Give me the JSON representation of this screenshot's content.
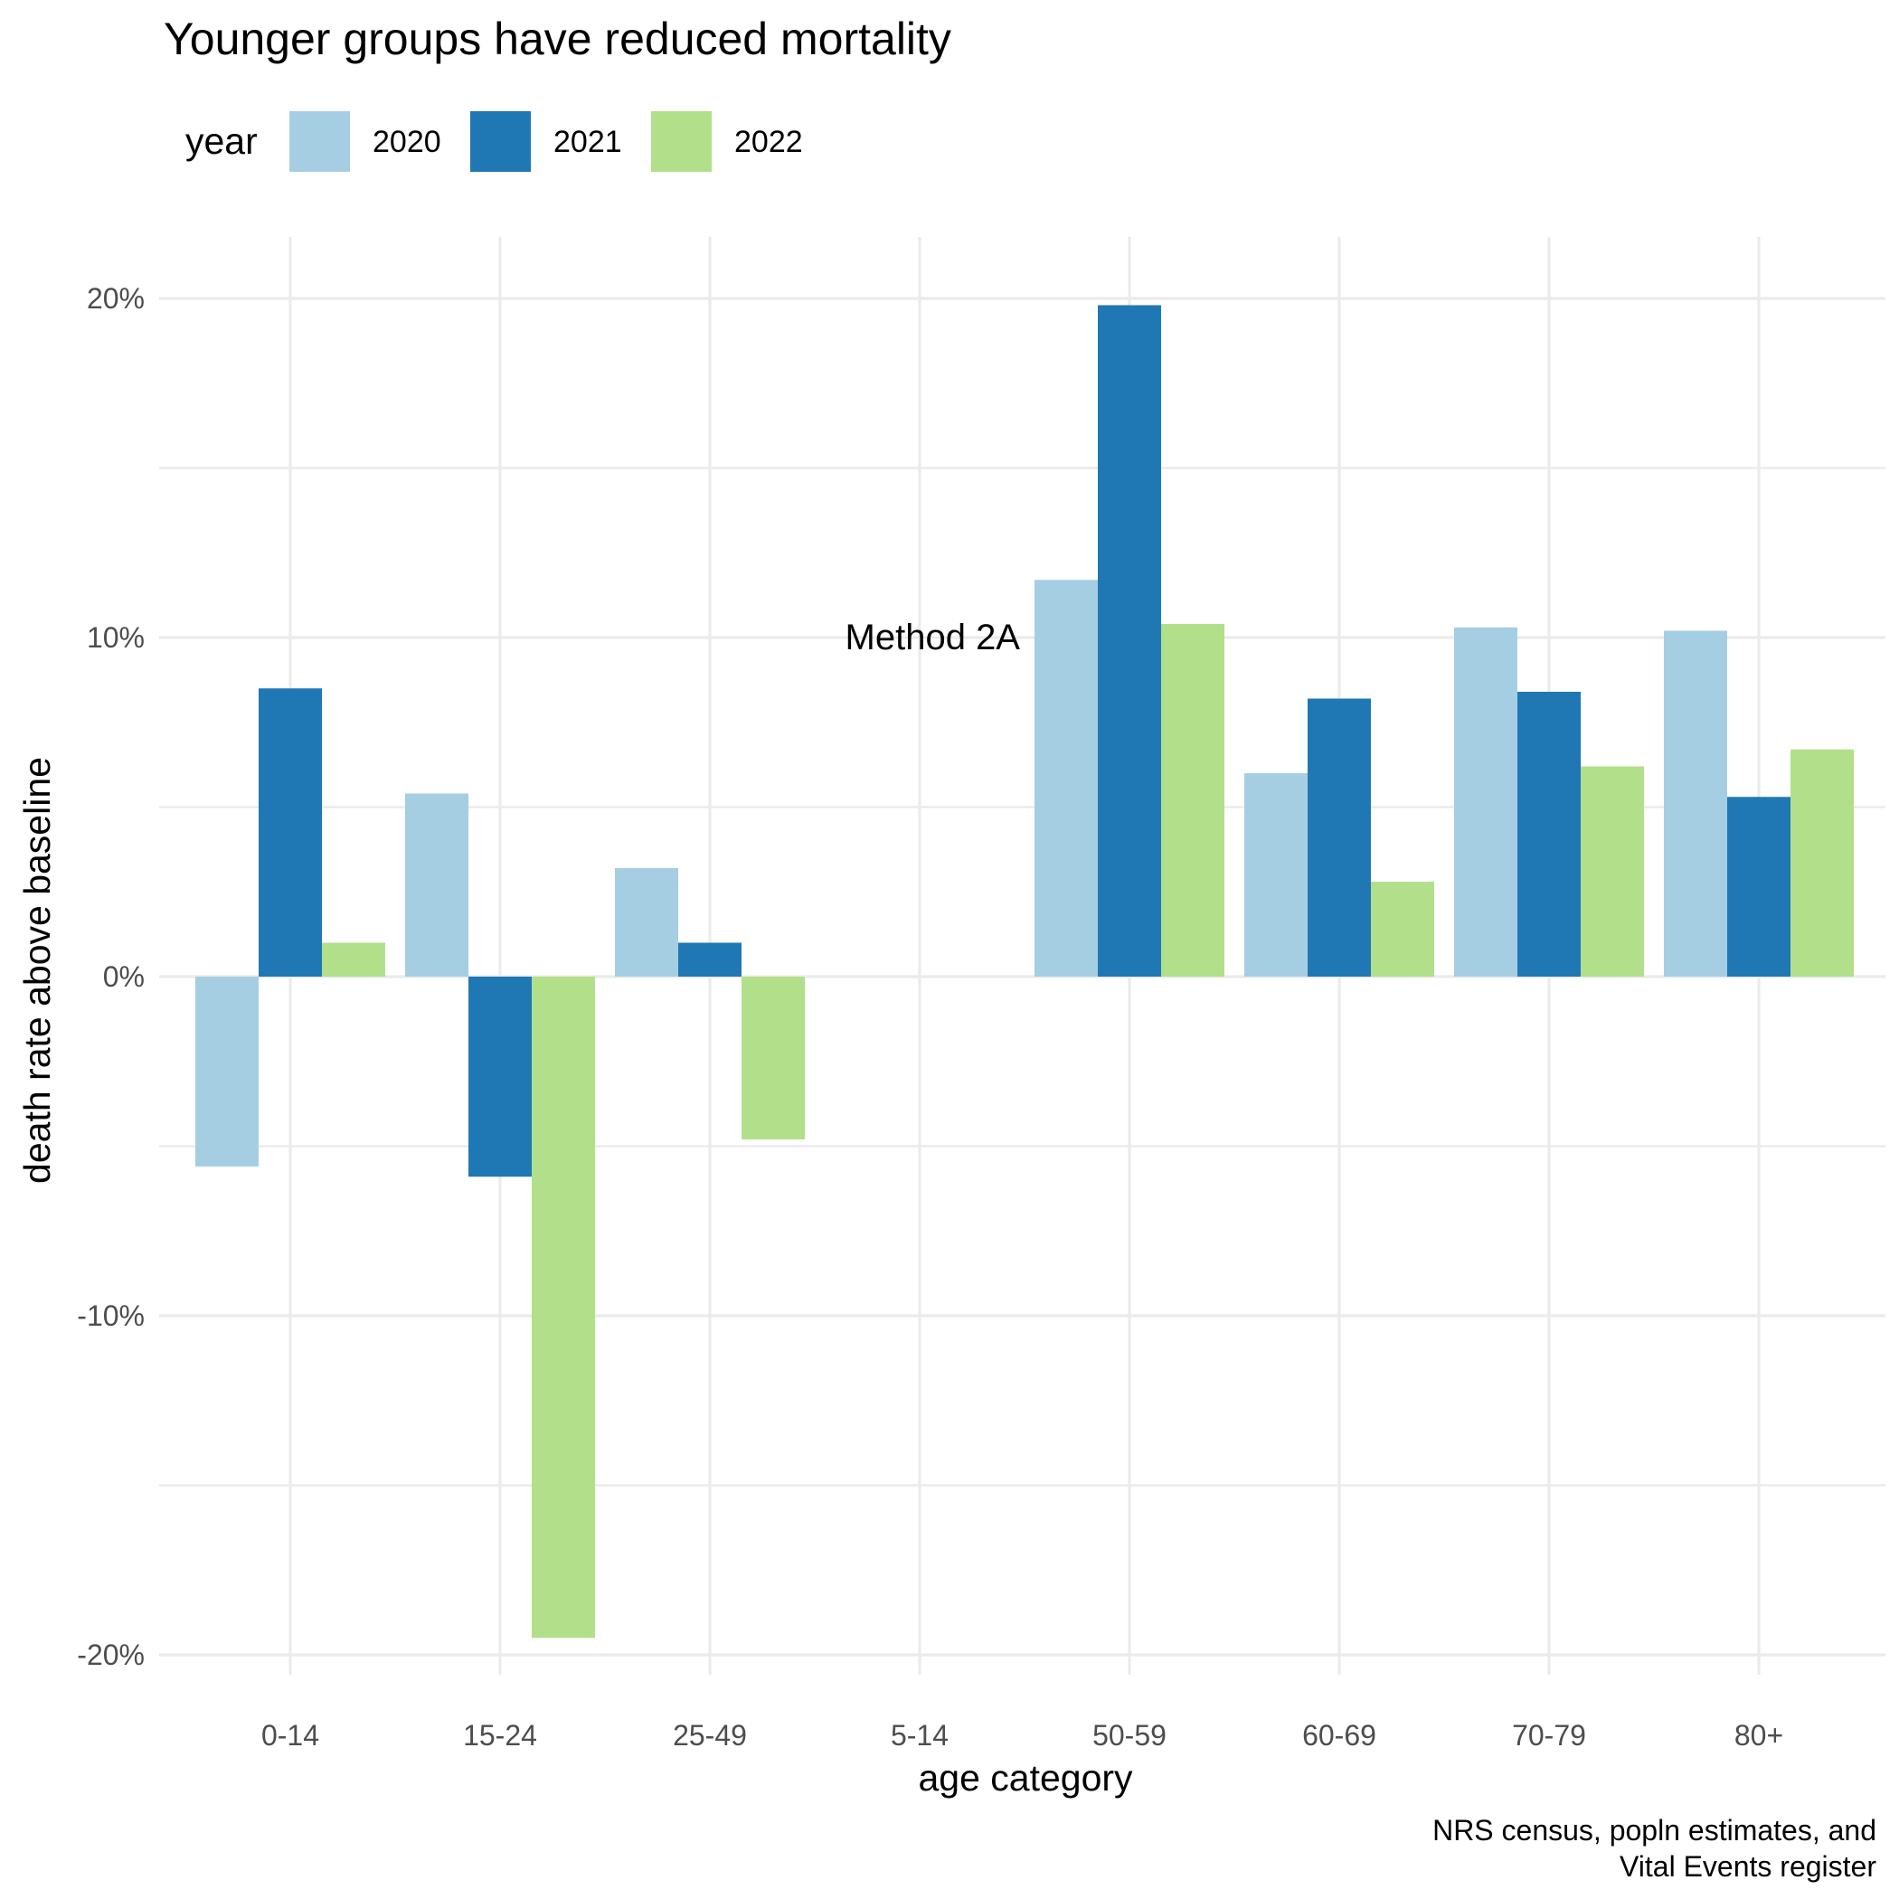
{
  "chart_data": {
    "type": "bar",
    "title": "Younger groups have reduced mortality",
    "xlabel": "age category",
    "ylabel": "death rate above baseline",
    "caption": [
      "NRS census, popln estimates, and",
      "Vital Events register"
    ],
    "annotation": "Method 2A",
    "legend": {
      "title": "year",
      "position": "top-left"
    },
    "categories": [
      "0-14",
      "15-24",
      "25-49",
      "5-14",
      "50-59",
      "60-69",
      "70-79",
      "80+"
    ],
    "series": [
      {
        "name": "2020",
        "color": "#a6cee3",
        "values": [
          -5.6,
          5.4,
          3.2,
          null,
          11.7,
          6.0,
          10.3,
          10.2
        ]
      },
      {
        "name": "2021",
        "color": "#1f78b4",
        "values": [
          8.5,
          -5.9,
          1.0,
          null,
          19.8,
          8.2,
          8.4,
          5.3
        ]
      },
      {
        "name": "2022",
        "color": "#b2df8a",
        "values": [
          1.0,
          -19.5,
          -4.8,
          null,
          10.4,
          2.8,
          6.2,
          6.7
        ]
      }
    ],
    "yticks": [
      {
        "value": -20,
        "label": "-20%"
      },
      {
        "value": -10,
        "label": "-10%"
      },
      {
        "value": 0,
        "label": "0%"
      },
      {
        "value": 10,
        "label": "10%"
      },
      {
        "value": 20,
        "label": "20%"
      }
    ],
    "ylim": [
      -21.5,
      21.5
    ],
    "grid": true
  }
}
